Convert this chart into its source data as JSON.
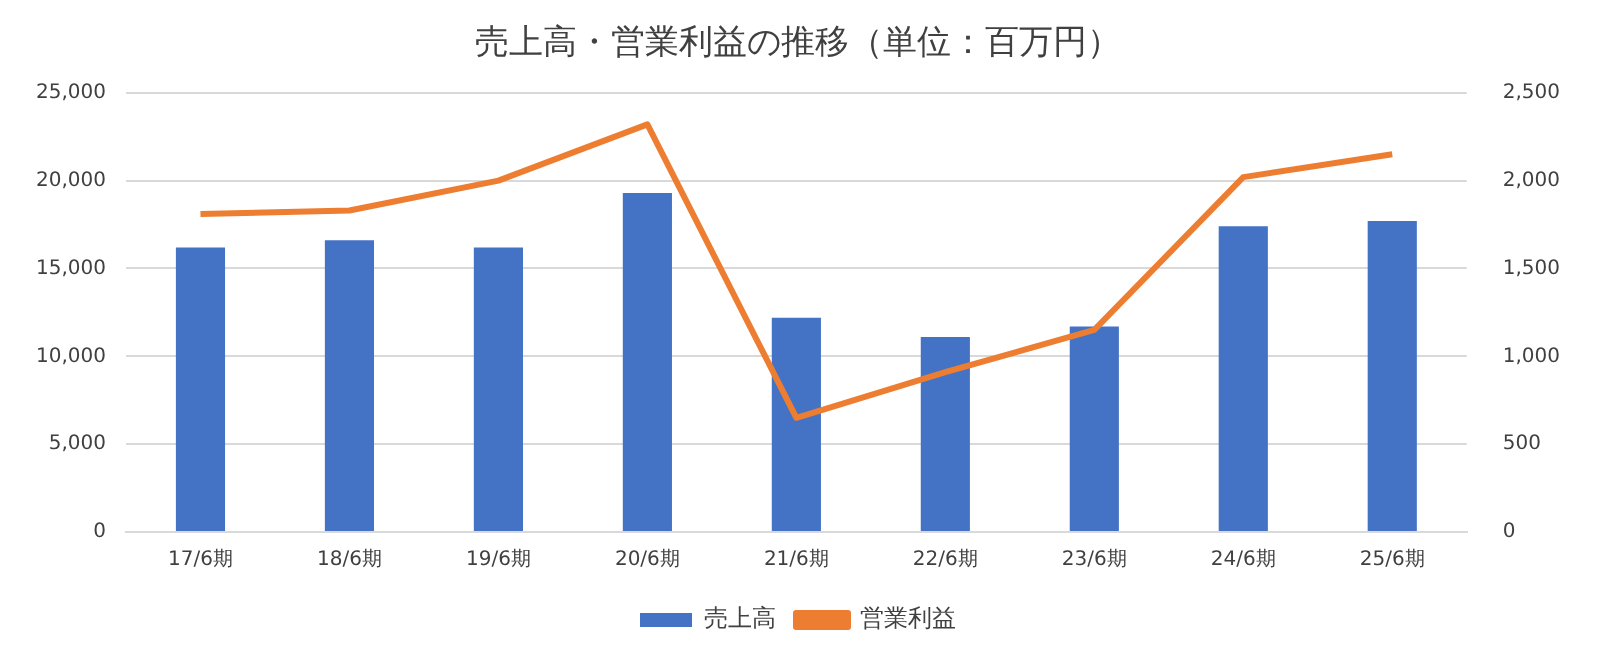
{
  "chart_data": {
    "type": "bar",
    "title": "売上高・営業利益の推移（単位：百万円）",
    "categories": [
      "17/6期",
      "18/6期",
      "19/6期",
      "20/6期",
      "21/6期",
      "22/6期",
      "23/6期",
      "24/6期",
      "25/6期"
    ],
    "series": [
      {
        "name": "売上高",
        "color": "#4472c4",
        "values": [
          16200,
          16600,
          16200,
          19300,
          12200,
          11100,
          11700,
          17400,
          17700
        ]
      },
      {
        "name": "営業利益",
        "type": "line",
        "axis": "y2",
        "color": "#ed7d31",
        "values": [
          1810,
          1830,
          2000,
          2320,
          650,
          910,
          1150,
          2020,
          2150
        ]
      }
    ],
    "ylim": [
      0,
      25000
    ],
    "yticks": [
      {
        "value": 0,
        "label": "0"
      },
      {
        "value": 5000,
        "label": "5,000"
      },
      {
        "value": 10000,
        "label": "10,000"
      },
      {
        "value": 15000,
        "label": "15,000"
      },
      {
        "value": 20000,
        "label": "20,000"
      },
      {
        "value": 25000,
        "label": "25,000"
      }
    ],
    "y2lim": [
      0,
      2500
    ],
    "y2ticks": [
      {
        "value": 0,
        "label": "0"
      },
      {
        "value": 500,
        "label": "500"
      },
      {
        "value": 1000,
        "label": "1,000"
      },
      {
        "value": 1500,
        "label": "1,500"
      },
      {
        "value": 2000,
        "label": "2,000"
      },
      {
        "value": 2500,
        "label": "2,500"
      }
    ],
    "grid": "y",
    "legend": "bottom",
    "marker": "none"
  }
}
